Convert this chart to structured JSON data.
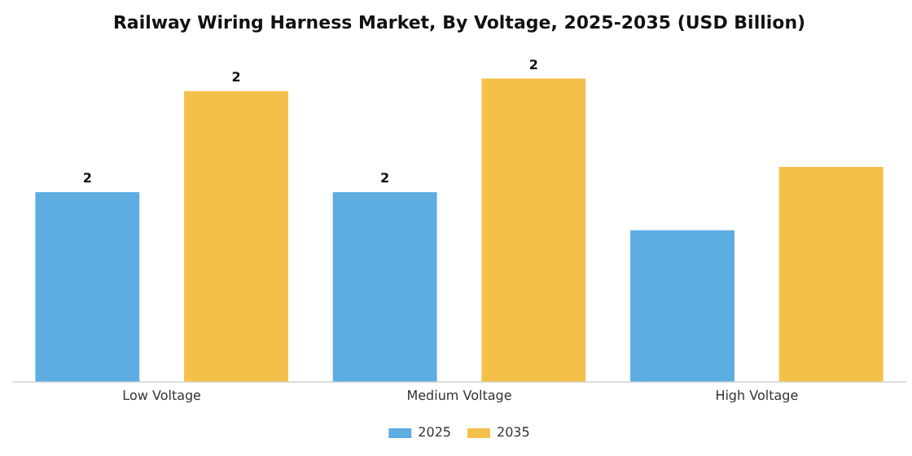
{
  "chart_data": {
    "type": "bar",
    "title": "Railway Wiring Harness Market, By Voltage, 2025-2035 (USD Billion)",
    "categories": [
      "Low Voltage",
      "Medium Voltage",
      "High Voltage"
    ],
    "tick_labels": "x",
    "legend": "bottom",
    "grid": false,
    "series": [
      {
        "name": "2025",
        "color": "#5dade2",
        "values": [
          1.5,
          1.5,
          1.2
        ],
        "value_labels": [
          "2",
          "2",
          null
        ]
      },
      {
        "name": "2035",
        "color": "#f5c04a",
        "values": [
          2.3,
          2.4,
          1.7
        ],
        "value_labels": [
          "2",
          "2",
          null
        ]
      }
    ]
  }
}
